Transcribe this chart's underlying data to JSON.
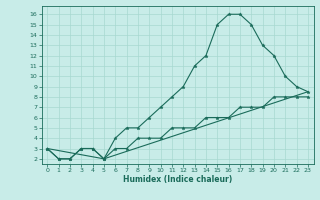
{
  "xlabel": "Humidex (Indice chaleur)",
  "bg_color": "#c8ece8",
  "grid_color": "#a8d8d0",
  "line_color": "#1a6b5a",
  "xlim": [
    -0.5,
    23.5
  ],
  "ylim": [
    1.5,
    16.8
  ],
  "xticks": [
    0,
    1,
    2,
    3,
    4,
    5,
    6,
    7,
    8,
    9,
    10,
    11,
    12,
    13,
    14,
    15,
    16,
    17,
    18,
    19,
    20,
    21,
    22,
    23
  ],
  "yticks": [
    2,
    3,
    4,
    5,
    6,
    7,
    8,
    9,
    10,
    11,
    12,
    13,
    14,
    15,
    16
  ],
  "line1_x": [
    0,
    1,
    2,
    3,
    4,
    5,
    6,
    7,
    8,
    9,
    10,
    11,
    12,
    13,
    14,
    15,
    16,
    17,
    18,
    19,
    20,
    21,
    22,
    23
  ],
  "line1_y": [
    3,
    2,
    2,
    3,
    3,
    2,
    4,
    5,
    5,
    6,
    7,
    8,
    9,
    11,
    12,
    15,
    16,
    16,
    15,
    13,
    12,
    10,
    9,
    8.5
  ],
  "line2_x": [
    0,
    1,
    2,
    3,
    4,
    5,
    6,
    7,
    8,
    9,
    10,
    11,
    12,
    13,
    14,
    15,
    16,
    17,
    18,
    19,
    20,
    21,
    22,
    23
  ],
  "line2_y": [
    3,
    2,
    2,
    3,
    3,
    2,
    3,
    3,
    4,
    4,
    4,
    5,
    5,
    5,
    6,
    6,
    6,
    7,
    7,
    7,
    8,
    8,
    8,
    8
  ],
  "line3_x": [
    0,
    5,
    23
  ],
  "line3_y": [
    3,
    2,
    8.5
  ]
}
